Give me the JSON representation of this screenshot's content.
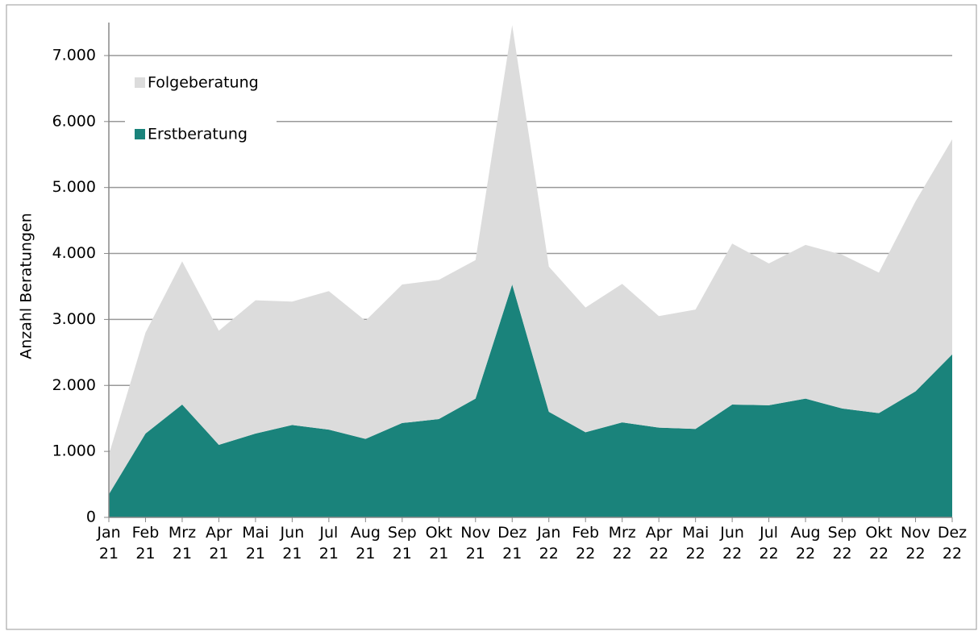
{
  "chart_data": {
    "type": "stacked-area",
    "y_label": "Anzahl  Beratungen",
    "categories": [
      "Jan 21",
      "Feb 21",
      "Mrz 21",
      "Apr 21",
      "Mai 21",
      "Jun 21",
      "Jul 21",
      "Aug 21",
      "Sep 21",
      "Okt 21",
      "Nov 21",
      "Dez 21",
      "Jan 22",
      "Feb 22",
      "Mrz 22",
      "Apr 22",
      "Mai 22",
      "Jun 22",
      "Jul 22",
      "Aug 22",
      "Sep 22",
      "Okt 22",
      "Nov 22",
      "Dez 22"
    ],
    "series": [
      {
        "name": "Erstberatung",
        "color": "#1a837b",
        "values": [
          350,
          1270,
          1710,
          1100,
          1270,
          1400,
          1330,
          1190,
          1430,
          1490,
          1800,
          3530,
          1600,
          1290,
          1440,
          1360,
          1340,
          1710,
          1700,
          1800,
          1650,
          1580,
          1910,
          2470
        ]
      },
      {
        "name": "Folgeberatung",
        "color": "#dcdcdc",
        "values": [
          600,
          1530,
          2170,
          1730,
          2020,
          1870,
          2100,
          1790,
          2100,
          2110,
          2100,
          3930,
          2200,
          1890,
          2100,
          1690,
          1810,
          2440,
          2150,
          2330,
          2330,
          2130,
          2880,
          3260
        ]
      }
    ],
    "ylim": [
      0,
      7500
    ],
    "yticks": [
      0,
      {
        "value": 1000,
        "label": "1.000"
      },
      {
        "value": 2000,
        "label": "2.000"
      },
      {
        "value": 3000,
        "label": "3.000"
      },
      {
        "value": 4000,
        "label": "4.000"
      },
      {
        "value": 5000,
        "label": "5.000"
      },
      {
        "value": 6000,
        "label": "6.000"
      },
      {
        "value": 7000,
        "label": "7.000"
      }
    ],
    "grid": true,
    "legend": "upper-left"
  }
}
